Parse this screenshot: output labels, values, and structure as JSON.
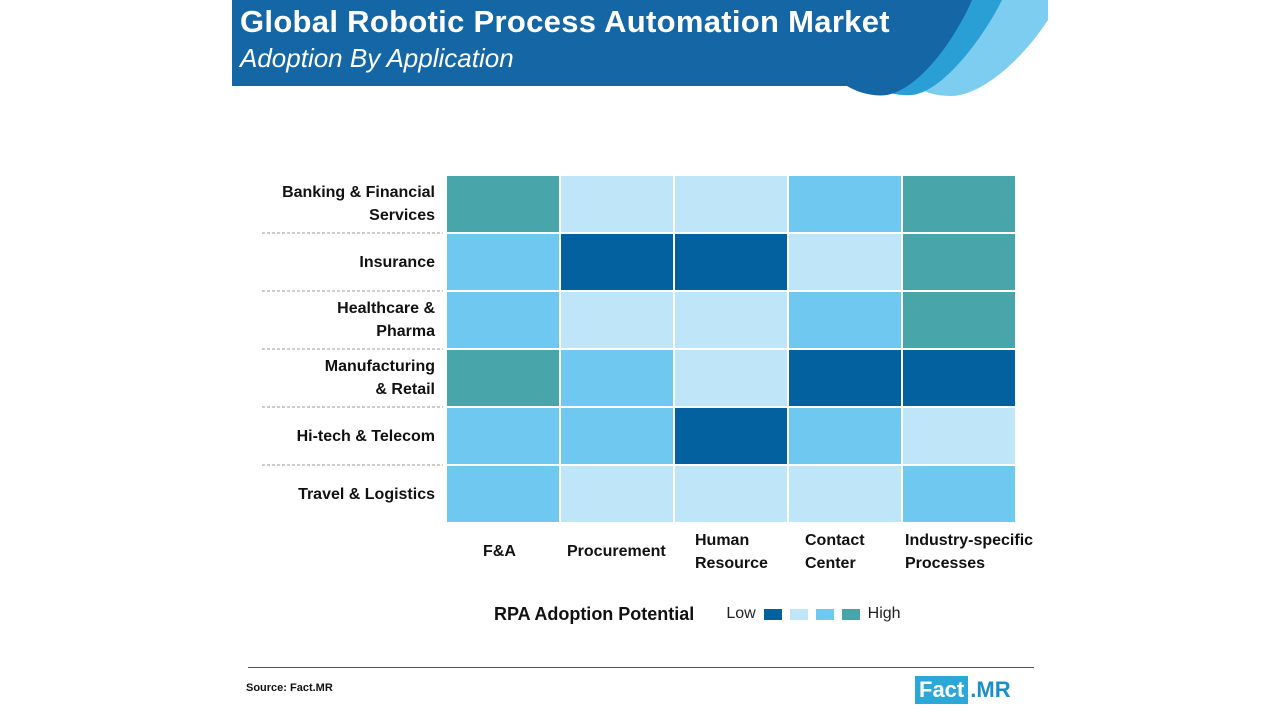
{
  "header": {
    "title": "Global Robotic Process Automation Market",
    "subtitle": "Adoption By Application"
  },
  "colors": {
    "banner_dark": "#1566a4",
    "banner_mid": "#2a9fd6",
    "banner_light": "#7dcdf0",
    "level_1": "#03619f",
    "level_2": "#bfe5f8",
    "level_3": "#6fc8ef",
    "level_4": "#48a6ab"
  },
  "chart_data": {
    "type": "heatmap",
    "rows": [
      [
        "Banking & Financial",
        "Services"
      ],
      [
        "Insurance"
      ],
      [
        "Healthcare &",
        "Pharma"
      ],
      [
        "Manufacturing",
        "& Retail"
      ],
      [
        "Hi-tech & Telecom"
      ],
      [
        "Travel & Logistics"
      ]
    ],
    "columns": [
      [
        "F&A"
      ],
      [
        "Procurement"
      ],
      [
        "Human",
        "Resource"
      ],
      [
        "Contact",
        "Center"
      ],
      [
        "Industry-specific",
        "Processes"
      ]
    ],
    "scale": "1 = Low ... 4 = High",
    "values": [
      [
        4,
        2,
        2,
        3,
        4
      ],
      [
        3,
        1,
        1,
        2,
        4
      ],
      [
        3,
        2,
        2,
        3,
        4
      ],
      [
        4,
        3,
        2,
        1,
        1
      ],
      [
        3,
        3,
        1,
        3,
        2
      ],
      [
        3,
        2,
        2,
        2,
        3
      ]
    ],
    "legend": {
      "title": "RPA Adoption Potential",
      "low_label": "Low",
      "high_label": "High",
      "levels": [
        1,
        2,
        3,
        4
      ]
    }
  },
  "footer": {
    "source": "Source: Fact.MR",
    "logo_part1": "Fact",
    "logo_part2": ".MR"
  }
}
